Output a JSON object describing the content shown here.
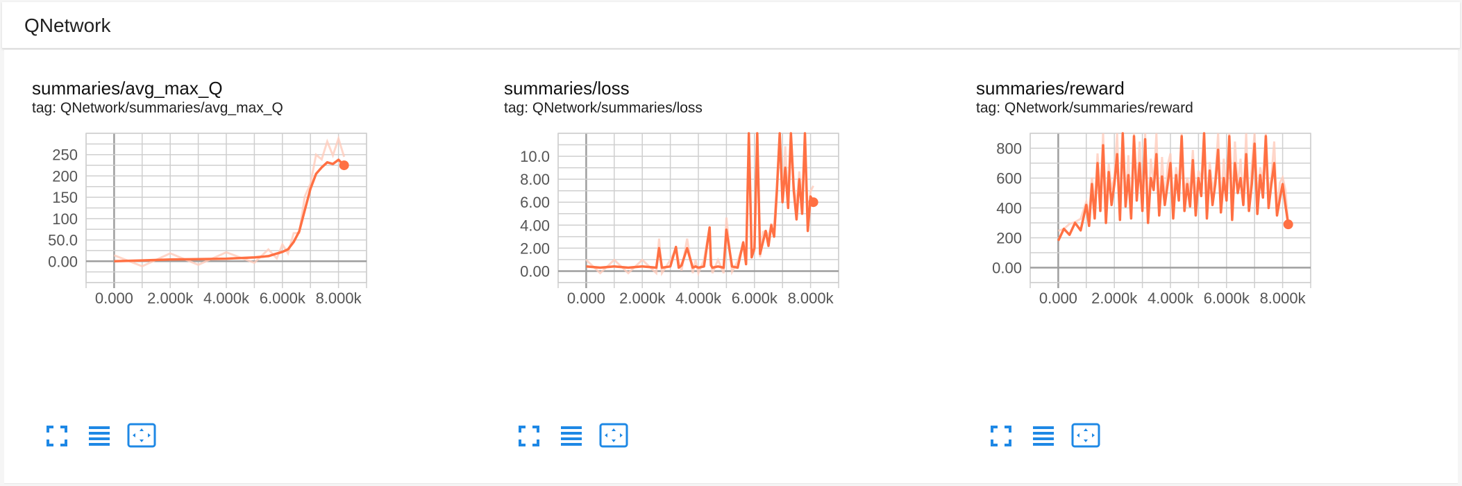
{
  "header": {
    "title": "QNetwork"
  },
  "colors": {
    "accent": "#ff7043",
    "accent_light": "#ffccbc",
    "icon": "#1e88e5",
    "grid": "#cfcfcf",
    "zero_axis": "#9e9e9e"
  },
  "cards": [
    {
      "title": "summaries/avg_max_Q",
      "tag": "tag: QNetwork/summaries/avg_max_Q",
      "buttons": {
        "expand_icon": "fullscreen-icon",
        "log_icon": "lines-icon",
        "fit_icon": "fit-domain-icon"
      }
    },
    {
      "title": "summaries/loss",
      "tag": "tag: QNetwork/summaries/loss",
      "buttons": {
        "expand_icon": "fullscreen-icon",
        "log_icon": "lines-icon",
        "fit_icon": "fit-domain-icon"
      }
    },
    {
      "title": "summaries/reward",
      "tag": "tag: QNetwork/summaries/reward",
      "buttons": {
        "expand_icon": "fullscreen-icon",
        "log_icon": "lines-icon",
        "fit_icon": "fit-domain-icon"
      }
    }
  ],
  "chart_data": [
    {
      "type": "line",
      "title": "summaries/avg_max_Q",
      "x_ticks": [
        "0.000",
        "2.000k",
        "4.000k",
        "6.000k",
        "8.000k"
      ],
      "x_tick_values": [
        0,
        2000,
        4000,
        6000,
        8000
      ],
      "y_ticks": [
        "0.00",
        "50.0",
        "100",
        "150",
        "200",
        "250"
      ],
      "y_tick_values": [
        0,
        50,
        100,
        150,
        200,
        250
      ],
      "xlim": [
        -1000,
        9000
      ],
      "ylim": [
        -50,
        300
      ],
      "series": [
        {
          "x": [
            0,
            1000,
            2000,
            3000,
            4000,
            5000,
            5500,
            5800,
            6000,
            6200,
            6400,
            6600,
            6800,
            7000,
            7200,
            7400,
            7600,
            7800,
            8000,
            8200
          ],
          "y": [
            0,
            2,
            4,
            5,
            6,
            9,
            12,
            18,
            22,
            28,
            45,
            70,
            120,
            170,
            205,
            220,
            232,
            228,
            238,
            225
          ]
        }
      ]
    },
    {
      "type": "line",
      "title": "summaries/loss",
      "x_ticks": [
        "0.000",
        "2.000k",
        "4.000k",
        "6.000k",
        "8.000k"
      ],
      "x_tick_values": [
        0,
        2000,
        4000,
        6000,
        8000
      ],
      "y_ticks": [
        "0.00",
        "2.00",
        "4.00",
        "6.00",
        "8.00",
        "10.0"
      ],
      "y_tick_values": [
        0,
        2,
        4,
        6,
        8,
        10
      ],
      "xlim": [
        -1000,
        9000
      ],
      "ylim": [
        -1,
        12
      ],
      "series": [
        {
          "x": [
            0,
            500,
            1000,
            1500,
            2000,
            2500,
            2600,
            2700,
            3000,
            3200,
            3300,
            3400,
            3600,
            3800,
            3900,
            4000,
            4200,
            4400,
            4450,
            4500,
            4700,
            4900,
            5000,
            5200,
            5400,
            5600,
            5700,
            5800,
            5900,
            6000,
            6100,
            6200,
            6300,
            6400,
            6500,
            6600,
            6700,
            6800,
            6900,
            7000,
            7100,
            7200,
            7300,
            7400,
            7500,
            7600,
            7700,
            7800,
            7900,
            8000,
            8100
          ],
          "y": [
            0.4,
            0.3,
            0.4,
            0.3,
            0.4,
            0.3,
            2.0,
            0.3,
            0.4,
            2.1,
            0.3,
            0.5,
            2.0,
            0.3,
            0.4,
            0.3,
            0.4,
            3.8,
            0.5,
            0.3,
            0.4,
            0.3,
            3.6,
            0.4,
            0.3,
            2.5,
            0.6,
            12,
            1.2,
            2.0,
            12,
            1.5,
            2.5,
            3.5,
            2.2,
            4.0,
            3.0,
            7.0,
            12,
            6.0,
            9.0,
            5.5,
            12,
            7.0,
            4.5,
            8.0,
            5.0,
            12,
            3.5,
            6.5,
            6.0
          ]
        }
      ]
    },
    {
      "type": "line",
      "title": "summaries/reward",
      "x_ticks": [
        "0.000",
        "2.000k",
        "4.000k",
        "6.000k",
        "8.000k"
      ],
      "x_tick_values": [
        0,
        2000,
        4000,
        6000,
        8000
      ],
      "y_ticks": [
        "0.00",
        "200",
        "400",
        "600",
        "800"
      ],
      "y_tick_values": [
        0,
        200,
        400,
        600,
        800
      ],
      "xlim": [
        -1000,
        9000
      ],
      "ylim": [
        -100,
        900
      ],
      "series": [
        {
          "x": [
            0,
            200,
            400,
            600,
            800,
            1000,
            1100,
            1200,
            1300,
            1400,
            1500,
            1600,
            1700,
            1800,
            1900,
            2000,
            2100,
            2200,
            2300,
            2400,
            2500,
            2600,
            2700,
            2800,
            2900,
            3000,
            3100,
            3200,
            3300,
            3400,
            3500,
            3600,
            3700,
            3800,
            3900,
            4000,
            4100,
            4200,
            4300,
            4400,
            4500,
            4600,
            4700,
            4800,
            4900,
            5000,
            5100,
            5200,
            5300,
            5400,
            5500,
            5600,
            5700,
            5800,
            5900,
            6000,
            6100,
            6200,
            6300,
            6400,
            6500,
            6600,
            6700,
            6800,
            6900,
            7000,
            7100,
            7200,
            7300,
            7400,
            7500,
            7600,
            7700,
            7800,
            7900,
            8000,
            8100,
            8200
          ],
          "y": [
            180,
            260,
            220,
            300,
            250,
            420,
            280,
            560,
            330,
            700,
            380,
            820,
            300,
            640,
            420,
            560,
            760,
            320,
            900,
            410,
            620,
            330,
            880,
            450,
            700,
            380,
            860,
            300,
            600,
            520,
            760,
            350,
            610,
            420,
            560,
            700,
            330,
            620,
            450,
            880,
            380,
            560,
            410,
            720,
            350,
            600,
            480,
            900,
            330,
            650,
            420,
            560,
            790,
            370,
            600,
            450,
            880,
            320,
            700,
            500,
            600,
            420,
            760,
            380,
            560,
            830,
            360,
            620,
            470,
            880,
            400,
            560,
            700,
            350,
            460,
            560,
            420,
            290
          ]
        }
      ]
    }
  ]
}
